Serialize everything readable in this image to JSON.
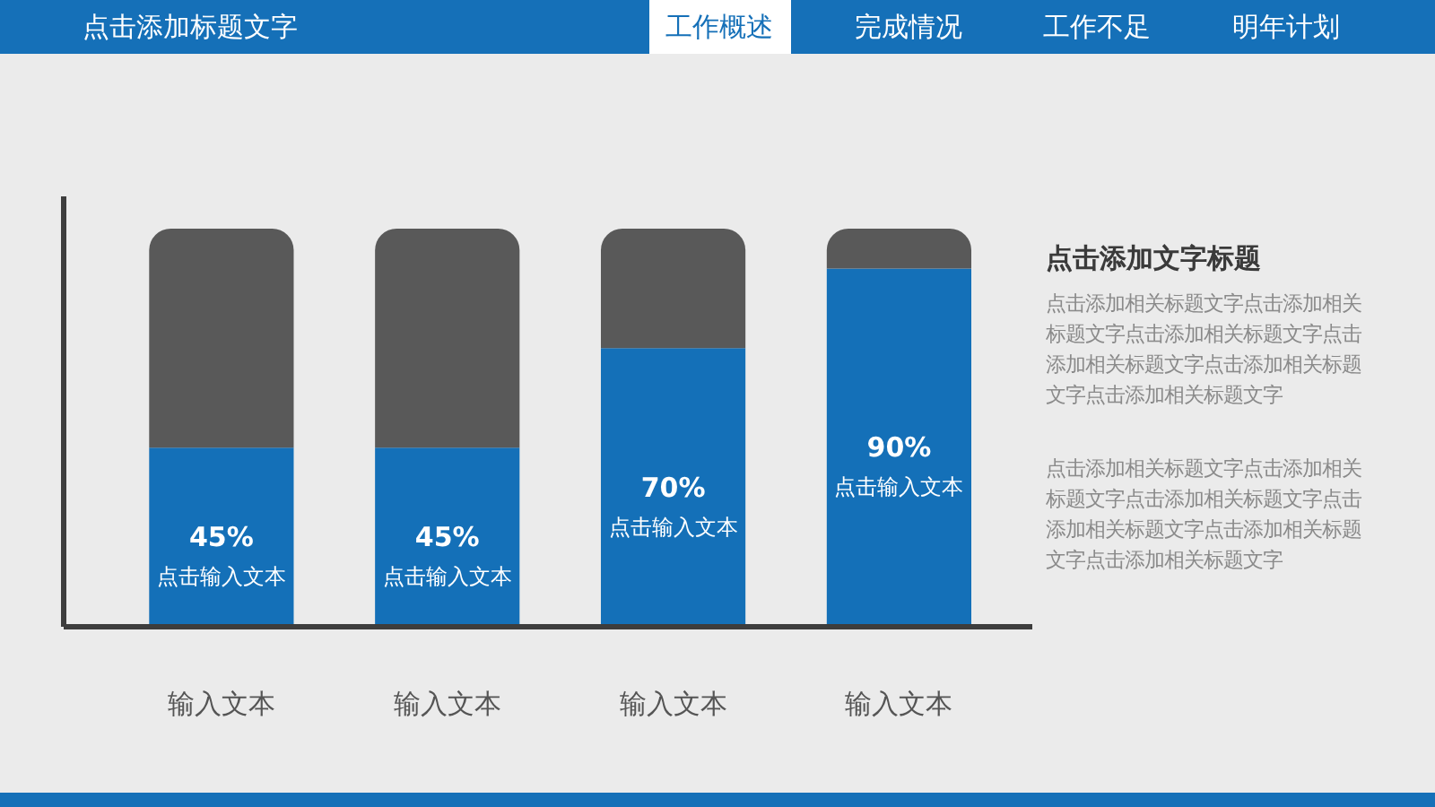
{
  "chart_data": {
    "type": "bar",
    "title": "点击添加标题文字",
    "categories": [
      "输入文本",
      "输入文本",
      "输入文本",
      "输入文本"
    ],
    "stacked": true,
    "series": [
      {
        "color": "#1470b8",
        "values": [
          45,
          45,
          70,
          90
        ],
        "value_labels": [
          "45%\n点击输入文本",
          "45%\n点击输入文本",
          "70%\n点击输入文本",
          "90%\n点击输入文本"
        ]
      },
      {
        "color": "#595959",
        "values": [
          55,
          55,
          30,
          10
        ]
      }
    ],
    "tick_labels": "x",
    "annotations": [
      "工作概述",
      "完成情况",
      "工作不足",
      "明年计划",
      "点击添加文字标题",
      "点击添加相关标题文字点击添加相关标题文字点击添加相关标题文字点击添加相关标题文字点击添加相关标题文字点击添加相关标题文字",
      "点击添加相关标题文字点击添加相关标题文字点击添加相关标题文字点击添加相关标题文字点击添加相关标题文字点击添加相关标题文字"
    ]
  }
}
